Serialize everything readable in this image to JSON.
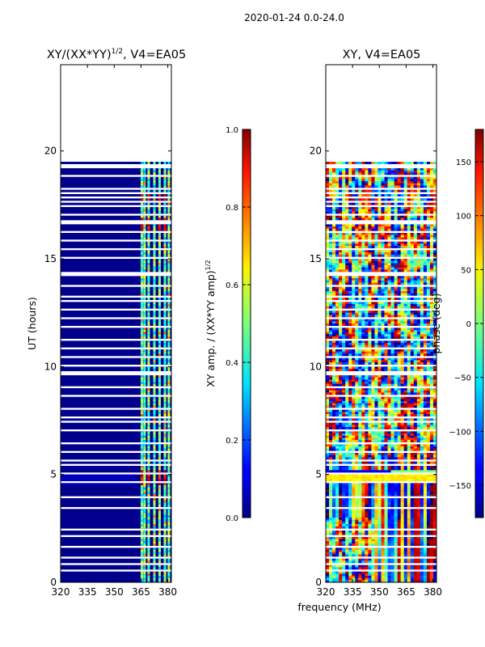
{
  "figure": {
    "suptitle": "2020-01-24 0.0-24.0",
    "xlabel_shared": "frequency (MHz)"
  },
  "panels": {
    "left": {
      "title": "XY/(XX*YY)",
      "title_sup": "1/2",
      "title_suffix": ", V4=EA05",
      "ylabel": "UT (hours)"
    },
    "right": {
      "title": "XY, V4=EA05"
    }
  },
  "colorbars": {
    "amp": {
      "label": "XY amp. / (XX*YY amp)",
      "label_sup": "1/2",
      "range": [
        0.0,
        1.0
      ],
      "ticks": [
        0.0,
        0.2,
        0.4,
        0.6,
        0.8,
        1.0
      ],
      "tick_labels": [
        "0.0",
        "0.2",
        "0.4",
        "0.6",
        "0.8",
        "1.0"
      ]
    },
    "phase": {
      "label": "phase (deg)",
      "range": [
        -180,
        180
      ],
      "ticks": [
        -150,
        -100,
        -50,
        0,
        50,
        100,
        150
      ],
      "tick_labels": [
        "−150",
        "−100",
        "−50",
        "0",
        "50",
        "100",
        "150"
      ]
    }
  },
  "chart_data": [
    {
      "type": "heatmap",
      "title": "XY/(XX*YY)^1/2, V4=EA05",
      "xlabel": "frequency (MHz)",
      "ylabel": "UT (hours)",
      "xlim": [
        320,
        382
      ],
      "ylim": [
        0,
        24
      ],
      "xticks": [
        320,
        335,
        350,
        365,
        380
      ],
      "yticks": [
        0,
        5,
        10,
        15,
        20
      ],
      "data_rows_ut": [
        0.0,
        19.5
      ],
      "colormap": "jet",
      "value_range": [
        0.0,
        1.0
      ]
    },
    {
      "type": "heatmap",
      "title": "XY, V4=EA05",
      "xlabel": "frequency (MHz)",
      "ylabel": "",
      "xlim": [
        320,
        382
      ],
      "ylim": [
        0,
        24
      ],
      "xticks": [
        320,
        335,
        350,
        365,
        380
      ],
      "yticks": [
        0,
        5,
        10,
        15,
        20
      ],
      "data_rows_ut": [
        0.0,
        19.5
      ],
      "colormap": "jet",
      "value_range": [
        -180,
        180
      ]
    }
  ]
}
